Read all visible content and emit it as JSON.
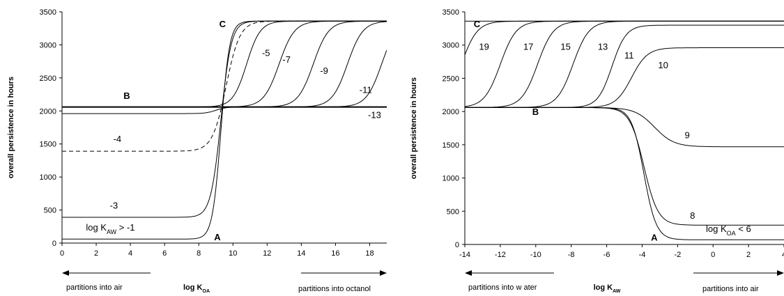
{
  "chart_data": [
    {
      "type": "line",
      "ylabel": "overall persistence in hours",
      "xlabel": {
        "main": "log K",
        "sub": "OA"
      },
      "xlim": [
        0,
        19
      ],
      "ylim": [
        0,
        3500
      ],
      "xticks": [
        0,
        2,
        4,
        6,
        8,
        10,
        12,
        14,
        16,
        18
      ],
      "yticks": [
        0,
        500,
        1000,
        1500,
        2000,
        2500,
        3000,
        3500
      ],
      "grid": false,
      "arrow_left": "partitions into air",
      "arrow_right": "partitions into octanol",
      "point_labels": [
        {
          "text": "A",
          "x": 8.9,
          "y": 40
        },
        {
          "text": "B",
          "x": 3.6,
          "y": 2180
        },
        {
          "text": "C",
          "x": 9.2,
          "y": 3270
        }
      ],
      "series": [
        {
          "label": "log K_AW > -1",
          "low": 60,
          "high": 3360,
          "mid": 9.3,
          "width": 0.25,
          "dash": "",
          "label_pos": {
            "x": 1.4,
            "y": 190
          }
        },
        {
          "label": "-3",
          "low": 390,
          "high": 3360,
          "mid": 9.3,
          "width": 0.3,
          "dash": "",
          "label_pos": {
            "x": 2.8,
            "y": 520
          }
        },
        {
          "label": "-4",
          "low": 1390,
          "high": 3360,
          "mid": 9.6,
          "width": 0.4,
          "dash": "6,4",
          "label_pos": {
            "x": 3.0,
            "y": 1530
          }
        },
        {
          "label": "-5",
          "low": 2060,
          "high": 3360,
          "mid": 10.8,
          "width": 0.4,
          "dash": "",
          "label_pos": {
            "x": 11.7,
            "y": 2830
          }
        },
        {
          "label": "-7",
          "low": 2060,
          "high": 3360,
          "mid": 12.7,
          "width": 0.45,
          "dash": "",
          "label_pos": {
            "x": 12.9,
            "y": 2730
          }
        },
        {
          "label": "-9",
          "low": 2060,
          "high": 3360,
          "mid": 14.7,
          "width": 0.45,
          "dash": "",
          "label_pos": {
            "x": 15.1,
            "y": 2560
          }
        },
        {
          "label": "-11",
          "low": 2060,
          "high": 3360,
          "mid": 16.7,
          "width": 0.45,
          "dash": "",
          "label_pos": {
            "x": 17.4,
            "y": 2270
          }
        },
        {
          "label": "-13",
          "low": 2060,
          "high": 3360,
          "mid": 18.7,
          "width": 0.45,
          "dash": "",
          "label_pos": {
            "x": 17.9,
            "y": 1890
          }
        },
        {
          "label": "B",
          "low": 2060,
          "high": 2060,
          "mid": 10,
          "width": 1,
          "dash": "",
          "label_pos": null
        },
        {
          "label": "",
          "low": 1960,
          "high": 2060,
          "mid": 9.0,
          "width": 0.3,
          "dash": "",
          "label_pos": null
        }
      ]
    },
    {
      "type": "line",
      "ylabel": "overall persistence in hours",
      "xlabel": {
        "main": "log K",
        "sub": "AW"
      },
      "xlim": [
        -14,
        4
      ],
      "ylim": [
        0,
        3500
      ],
      "xticks": [
        -14,
        -12,
        -10,
        -8,
        -6,
        -4,
        -2,
        0,
        2,
        4
      ],
      "yticks": [
        0,
        500,
        1000,
        1500,
        2000,
        2500,
        3000,
        3500
      ],
      "grid": false,
      "arrow_left": "partitions into w ater",
      "arrow_right": "partitions into air",
      "point_labels": [
        {
          "text": "A",
          "x": -3.5,
          "y": 60
        },
        {
          "text": "B",
          "x": -10.2,
          "y": 1950
        },
        {
          "text": "C",
          "x": -13.5,
          "y": 3270
        }
      ],
      "series": [
        {
          "label": "19",
          "low": 2060,
          "high": 3360,
          "mid": -14.2,
          "width": 0.45,
          "sign": 1,
          "label_pos": {
            "x": -13.2,
            "y": 2930
          }
        },
        {
          "label": "17",
          "low": 2060,
          "high": 3360,
          "mid": -12.0,
          "width": 0.45,
          "sign": 1,
          "label_pos": {
            "x": -10.7,
            "y": 2930
          }
        },
        {
          "label": "15",
          "low": 2060,
          "high": 3360,
          "mid": -9.9,
          "width": 0.45,
          "sign": 1,
          "label_pos": {
            "x": -8.6,
            "y": 2930
          }
        },
        {
          "label": "13",
          "low": 2060,
          "high": 3360,
          "mid": -7.9,
          "width": 0.45,
          "sign": 1,
          "label_pos": {
            "x": -6.5,
            "y": 2930
          }
        },
        {
          "label": "11",
          "low": 2060,
          "high": 3300,
          "mid": -5.7,
          "width": 0.4,
          "sign": 1,
          "label_pos": {
            "x": -5.0,
            "y": 2800
          }
        },
        {
          "label": "10",
          "low": 2060,
          "high": 2960,
          "mid": -4.6,
          "width": 0.45,
          "sign": 1,
          "label_pos": {
            "x": -3.1,
            "y": 2650
          }
        },
        {
          "label": "9",
          "low": 1470,
          "high": 2060,
          "mid": -3.3,
          "width": 0.55,
          "sign": -1,
          "label_pos": {
            "x": -1.6,
            "y": 1600
          }
        },
        {
          "label": "8",
          "low": 290,
          "high": 2060,
          "mid": -3.9,
          "width": 0.4,
          "sign": -1,
          "label_pos": {
            "x": -1.3,
            "y": 390
          }
        },
        {
          "label": "log K_OA < 6",
          "low": 70,
          "high": 2060,
          "mid": -3.9,
          "width": 0.35,
          "sign": -1,
          "label_pos": {
            "x": -0.4,
            "y": 190
          }
        }
      ],
      "flat_lines": [
        3360
      ]
    }
  ]
}
